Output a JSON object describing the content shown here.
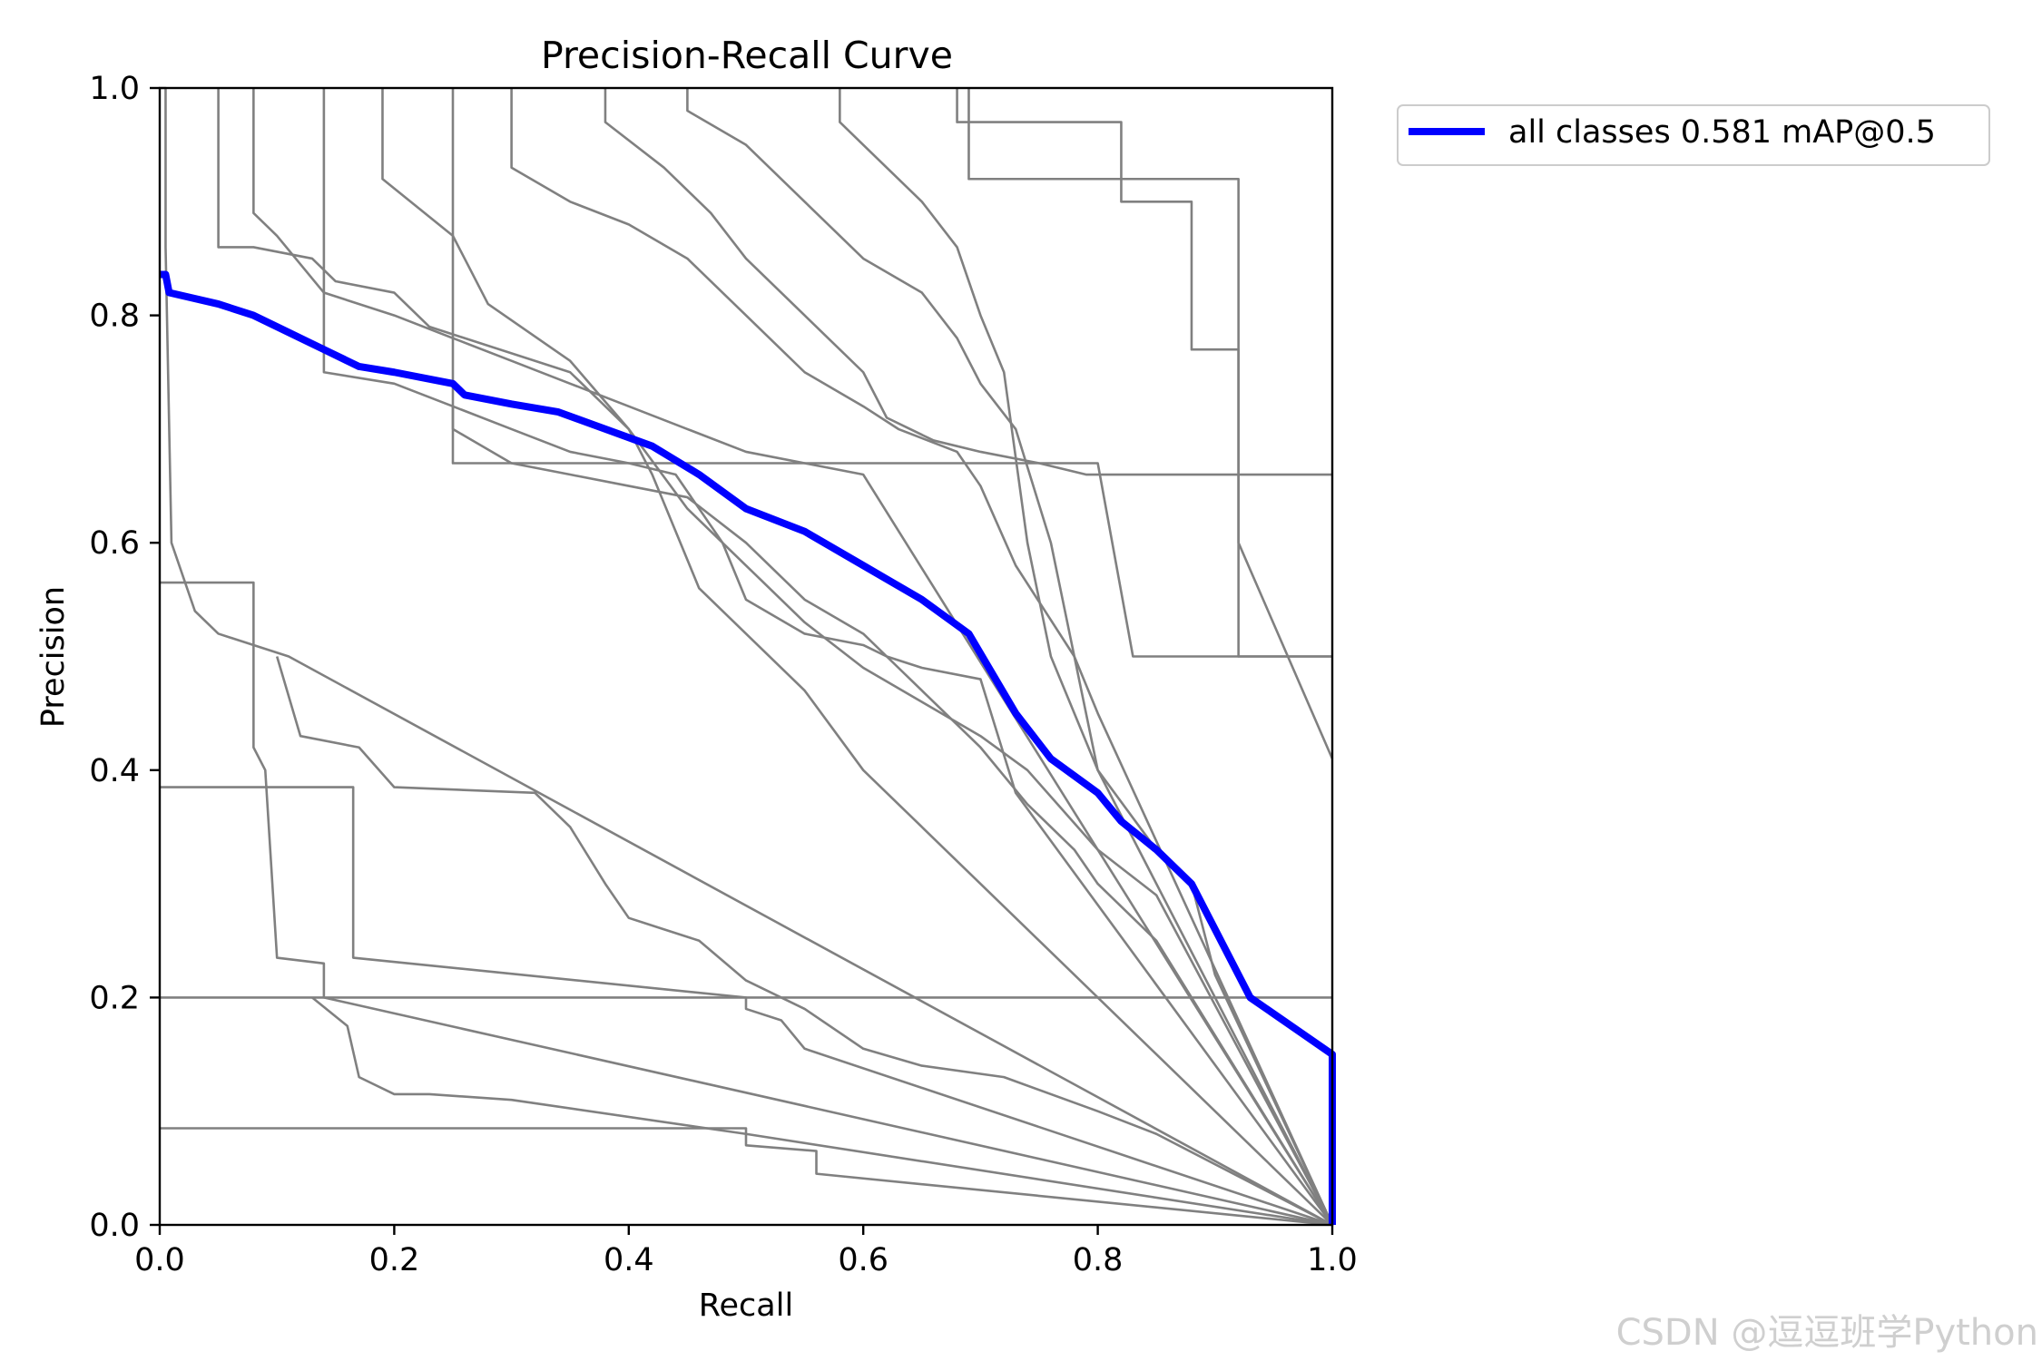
{
  "chart_data": {
    "type": "line",
    "title": "Precision-Recall Curve",
    "xlabel": "Recall",
    "ylabel": "Precision",
    "xlim": [
      0,
      1
    ],
    "ylim": [
      0,
      1
    ],
    "xticks": [
      "0.0",
      "0.2",
      "0.4",
      "0.6",
      "0.8",
      "1.0"
    ],
    "yticks": [
      "0.0",
      "0.2",
      "0.4",
      "0.6",
      "0.8",
      "1.0"
    ],
    "grid": false,
    "legend_position": "outside-top-right",
    "colors": {
      "all": "#0000ff",
      "class": "#808080",
      "axis": "#000000"
    },
    "series": [
      {
        "name": "all classes 0.581 mAP@0.5",
        "highlight": true,
        "x": [
          0,
          0.005,
          0.008,
          0.05,
          0.08,
          0.1,
          0.14,
          0.17,
          0.2,
          0.25,
          0.26,
          0.3,
          0.34,
          0.38,
          0.42,
          0.46,
          0.5,
          0.55,
          0.6,
          0.65,
          0.69,
          0.73,
          0.76,
          0.8,
          0.82,
          0.85,
          0.88,
          0.9,
          0.93,
          1.0,
          1.0
        ],
        "y": [
          0.836,
          0.836,
          0.82,
          0.81,
          0.8,
          0.79,
          0.77,
          0.755,
          0.75,
          0.74,
          0.73,
          0.722,
          0.715,
          0.7,
          0.685,
          0.66,
          0.63,
          0.61,
          0.58,
          0.55,
          0.52,
          0.45,
          0.41,
          0.38,
          0.355,
          0.33,
          0.3,
          0.26,
          0.2,
          0.15,
          0
        ]
      },
      {
        "x": [
          0,
          0.005,
          0.005,
          0.01,
          0.02,
          0.03,
          0.05,
          0.11,
          1.0
        ],
        "y": [
          1,
          1,
          0.86,
          0.6,
          0.57,
          0.54,
          0.52,
          0.5,
          0
        ]
      },
      {
        "x": [
          0,
          0.08,
          0.08,
          0.09,
          0.1,
          0.14,
          0.14,
          1.0
        ],
        "y": [
          0.565,
          0.565,
          0.42,
          0.4,
          0.235,
          0.23,
          0.2,
          0
        ]
      },
      {
        "x": [
          0.1,
          0.12,
          0.17,
          0.2,
          0.32,
          0.35,
          0.38,
          0.4,
          0.43,
          0.46,
          0.5,
          0.55,
          0.6,
          0.65,
          0.72,
          0.8,
          0.85,
          1.0
        ],
        "y": [
          0.5,
          0.43,
          0.42,
          0.385,
          0.38,
          0.35,
          0.3,
          0.27,
          0.26,
          0.25,
          0.215,
          0.19,
          0.155,
          0.14,
          0.13,
          0.1,
          0.08,
          0
        ]
      },
      {
        "x": [
          0,
          0.165,
          0.165,
          0.5,
          0.5,
          0.53,
          0.55,
          1.0
        ],
        "y": [
          0.385,
          0.385,
          0.235,
          0.2,
          0.19,
          0.18,
          0.155,
          0
        ]
      },
      {
        "x": [
          0.13,
          0.16,
          0.17,
          0.2,
          0.23,
          0.3,
          0.5,
          1.0
        ],
        "y": [
          0.2,
          0.175,
          0.13,
          0.115,
          0.115,
          0.11,
          0.08,
          0
        ]
      },
      {
        "x": [
          0,
          0.5,
          0.5,
          0.56,
          0.56,
          1.0
        ],
        "y": [
          0.085,
          0.085,
          0.07,
          0.065,
          0.045,
          0
        ]
      },
      {
        "x": [
          0,
          1.0
        ],
        "y": [
          0.2,
          0.2
        ]
      },
      {
        "x": [
          0.05,
          0.05,
          0.08,
          0.13,
          0.15,
          0.2,
          0.23,
          0.35,
          0.4,
          0.42,
          0.44,
          0.46,
          0.5,
          0.55,
          0.6,
          1.0
        ],
        "y": [
          1,
          0.86,
          0.86,
          0.85,
          0.83,
          0.82,
          0.79,
          0.75,
          0.7,
          0.66,
          0.61,
          0.56,
          0.52,
          0.47,
          0.4,
          0
        ]
      },
      {
        "x": [
          0.08,
          0.08,
          0.1,
          0.14,
          0.2,
          0.25,
          0.3,
          0.35,
          0.4,
          0.45,
          0.5,
          0.55,
          0.6,
          1.0
        ],
        "y": [
          1,
          0.89,
          0.87,
          0.82,
          0.8,
          0.78,
          0.76,
          0.74,
          0.72,
          0.7,
          0.68,
          0.67,
          0.66,
          0
        ]
      },
      {
        "x": [
          0.14,
          0.14,
          0.2,
          0.25,
          0.3,
          0.35,
          0.4,
          0.44,
          0.48,
          0.5,
          0.55,
          0.6,
          0.62,
          0.65,
          0.7,
          0.73,
          1.0
        ],
        "y": [
          1,
          0.75,
          0.74,
          0.72,
          0.7,
          0.68,
          0.67,
          0.66,
          0.6,
          0.55,
          0.52,
          0.51,
          0.5,
          0.49,
          0.48,
          0.38,
          0
        ]
      },
      {
        "x": [
          0.19,
          0.19,
          0.25,
          0.28,
          0.35,
          0.4,
          0.45,
          0.5,
          0.55,
          0.6,
          0.65,
          0.7,
          0.74,
          0.8,
          0.85,
          1.0
        ],
        "y": [
          1,
          0.92,
          0.87,
          0.81,
          0.76,
          0.7,
          0.63,
          0.58,
          0.53,
          0.49,
          0.46,
          0.43,
          0.4,
          0.33,
          0.29,
          0
        ]
      },
      {
        "x": [
          0.25,
          0.25,
          0.5,
          0.55,
          0.6,
          0.65,
          0.7,
          0.73,
          0.8,
          0.83,
          0.88,
          1.0
        ],
        "y": [
          1,
          0.67,
          0.67,
          0.67,
          0.67,
          0.67,
          0.67,
          0.67,
          0.67,
          0.5,
          0.5,
          0.5
        ]
      },
      {
        "x": [
          0.25,
          0.25,
          0.3,
          0.35,
          0.4,
          0.45,
          0.5,
          0.55,
          0.6,
          0.62,
          0.65,
          0.7,
          0.74,
          0.78,
          0.8,
          0.85,
          1.0
        ],
        "y": [
          0.72,
          0.7,
          0.67,
          0.66,
          0.65,
          0.64,
          0.6,
          0.55,
          0.52,
          0.5,
          0.47,
          0.42,
          0.37,
          0.33,
          0.3,
          0.25,
          0
        ]
      },
      {
        "x": [
          0.3,
          0.3,
          0.35,
          0.4,
          0.45,
          0.5,
          0.55,
          0.6,
          0.63,
          0.68,
          0.7,
          0.73,
          0.78,
          0.8,
          1.0
        ],
        "y": [
          1,
          0.93,
          0.9,
          0.88,
          0.85,
          0.8,
          0.75,
          0.72,
          0.7,
          0.68,
          0.65,
          0.58,
          0.5,
          0.45,
          0
        ]
      },
      {
        "x": [
          0.38,
          0.38,
          0.43,
          0.47,
          0.5,
          0.55,
          0.6,
          0.62,
          0.66,
          0.7,
          0.75,
          0.79,
          1.0
        ],
        "y": [
          1,
          0.97,
          0.93,
          0.89,
          0.85,
          0.8,
          0.75,
          0.71,
          0.69,
          0.68,
          0.67,
          0.66,
          0.66
        ]
      },
      {
        "x": [
          0.45,
          0.45,
          0.5,
          0.55,
          0.6,
          0.65,
          0.68,
          0.7,
          0.73,
          0.76,
          0.78,
          0.8,
          1.0
        ],
        "y": [
          1,
          0.98,
          0.95,
          0.9,
          0.85,
          0.82,
          0.78,
          0.74,
          0.7,
          0.6,
          0.5,
          0.4,
          0
        ]
      },
      {
        "x": [
          0.58,
          0.58,
          0.6,
          0.65,
          0.68,
          0.7,
          0.72,
          0.74,
          0.76,
          0.78,
          0.8,
          0.85,
          0.88,
          0.9,
          1.0
        ],
        "y": [
          1,
          0.97,
          0.95,
          0.9,
          0.86,
          0.8,
          0.75,
          0.6,
          0.5,
          0.45,
          0.4,
          0.33,
          0.3,
          0.22,
          0
        ]
      },
      {
        "x": [
          0.68,
          0.68,
          0.82,
          0.82,
          0.88,
          0.88,
          0.92,
          0.92,
          1.0
        ],
        "y": [
          1,
          0.97,
          0.97,
          0.9,
          0.9,
          0.77,
          0.77,
          0.6,
          0.41
        ]
      },
      {
        "x": [
          0.69,
          0.69,
          0.92,
          0.92,
          1.0
        ],
        "y": [
          1,
          0.92,
          0.92,
          0.5,
          0.5
        ]
      }
    ]
  },
  "watermark": "CSDN @逗逗班学Python"
}
